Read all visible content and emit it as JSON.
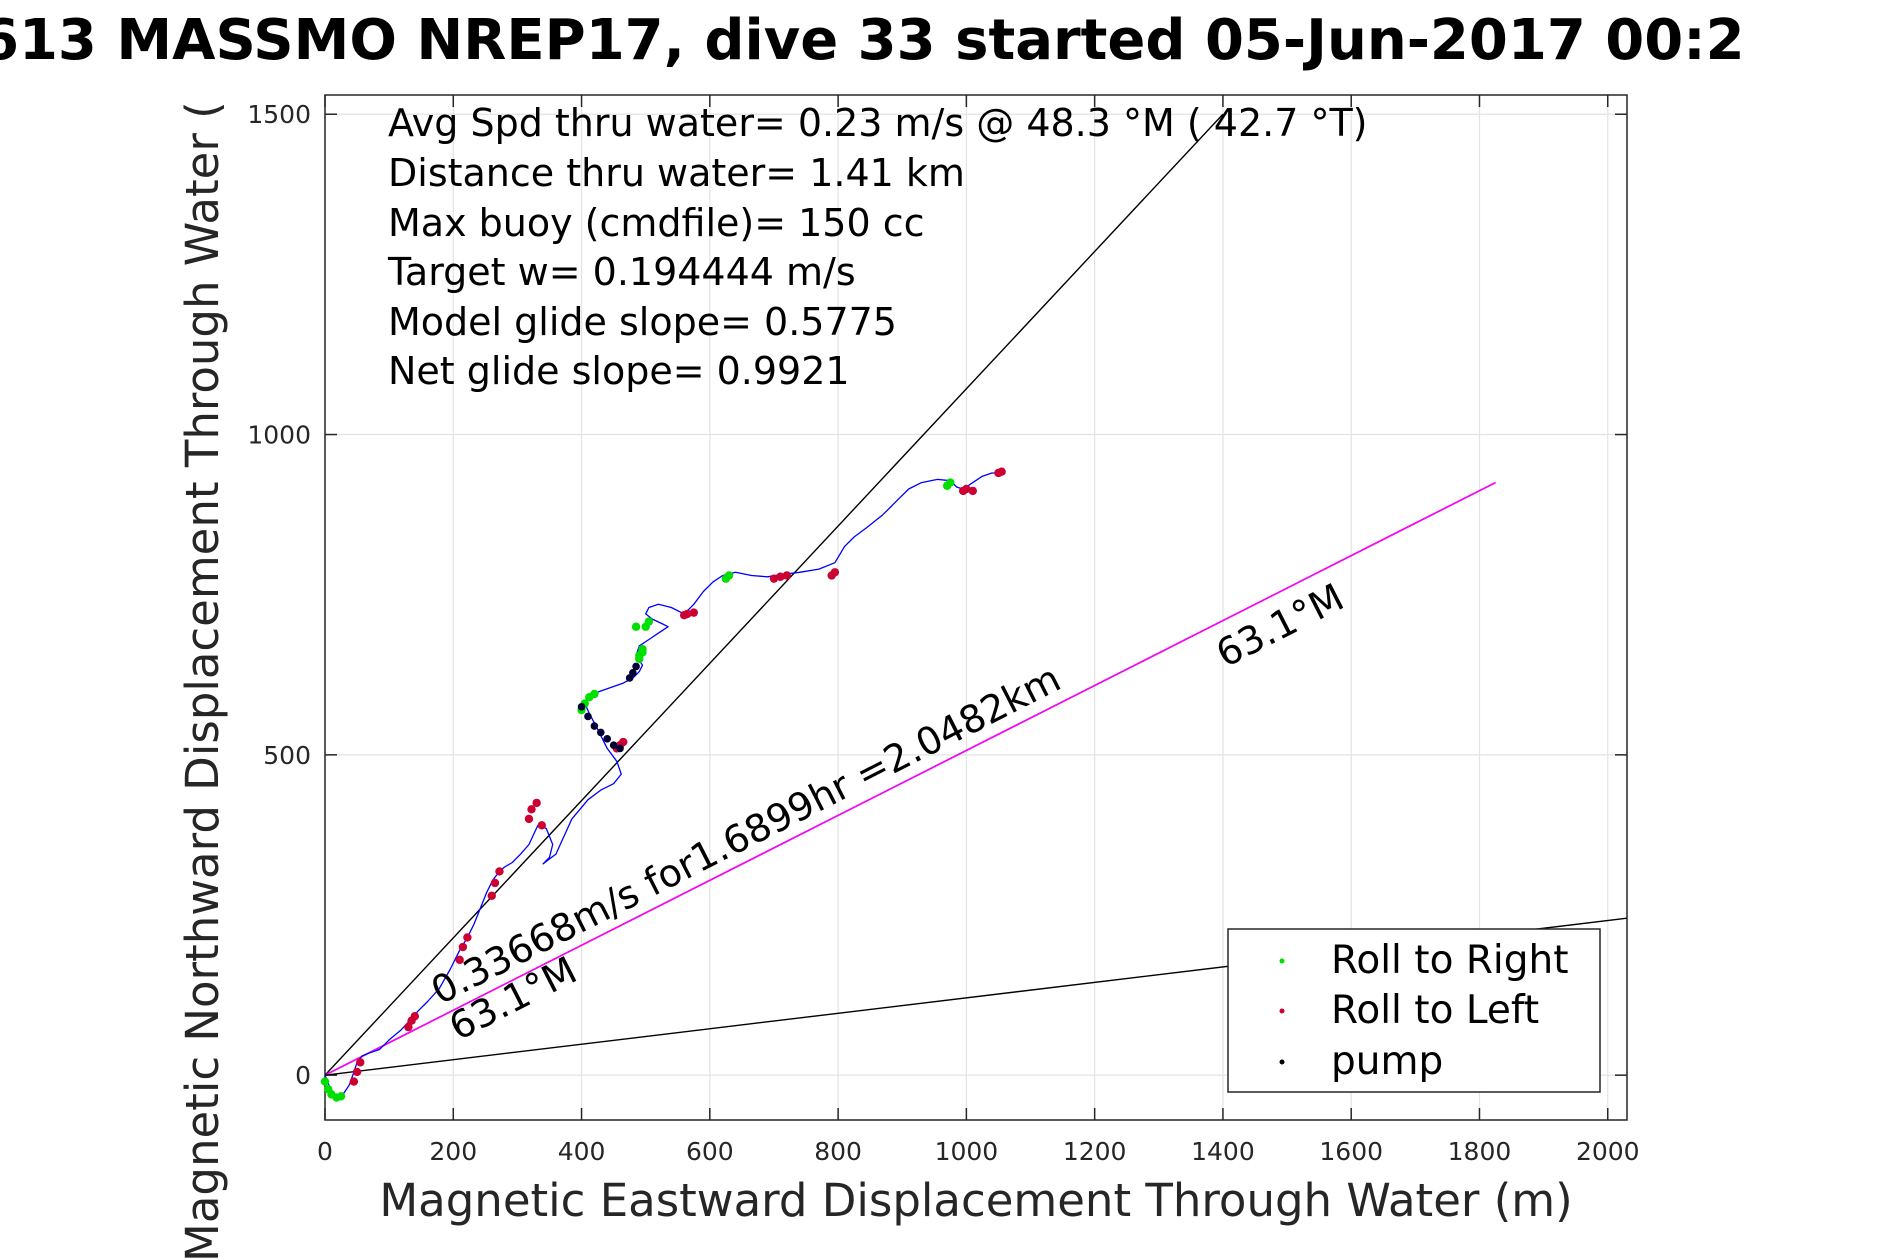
{
  "chart_data": {
    "type": "line",
    "title": "613 MASSMO NREP17, dive 33 started 05-Jun-2017 00:2",
    "xlabel": "Magnetic Eastward Displacement Through Water (m)",
    "ylabel": "Magnetic Northward Displacement Through Water (",
    "xlim": [
      0,
      2030
    ],
    "ylim": [
      -70,
      1530
    ],
    "xticks": [
      0,
      200,
      400,
      600,
      800,
      1000,
      1200,
      1400,
      1600,
      1800,
      2000
    ],
    "yticks": [
      0,
      500,
      1000,
      1500
    ],
    "grid": true,
    "stats": [
      "Avg Spd thru water=  0.23 m/s @  48.3 °M ( 42.7 °T)",
      "Distance thru water=  1.41 km",
      "Max buoy (cmdfile)= 150 cc",
      "Target w= 0.194444 m/s",
      "Model glide slope= 0.5775",
      "Net glide slope= 0.9921"
    ],
    "annotations": {
      "current": "0.33668m/s for1.6899hr =2.0482km",
      "heading_upper": "63.1°M",
      "heading_lower": "63.1°M"
    },
    "series": [
      {
        "name": "track",
        "color": "#0000ff",
        "x": [
          0,
          8,
          18,
          28,
          38,
          45,
          50,
          58,
          70,
          85,
          100,
          118,
          132,
          145,
          160,
          178,
          195,
          210,
          222,
          232,
          242,
          252,
          262,
          272,
          280,
          292,
          305,
          318,
          325,
          332,
          345,
          355,
          350,
          340,
          360,
          385,
          410,
          430,
          450,
          462,
          455,
          440,
          425,
          412,
          405,
          410,
          425,
          445,
          465,
          480,
          490,
          495,
          485,
          490,
          505,
          520,
          535,
          525,
          510,
          500,
          505,
          520,
          540,
          560,
          575,
          590,
          605,
          620,
          640,
          665,
          690,
          715,
          740,
          770,
          795,
          810,
          825,
          845,
          870,
          895,
          910,
          930,
          955,
          975,
          985,
          995,
          1010,
          1025,
          1040,
          1055
        ],
        "y": [
          0,
          -20,
          -35,
          -30,
          -15,
          5,
          20,
          30,
          35,
          40,
          55,
          70,
          85,
          100,
          115,
          135,
          165,
          195,
          215,
          235,
          260,
          285,
          305,
          318,
          325,
          332,
          345,
          360,
          375,
          390,
          385,
          360,
          340,
          330,
          345,
          400,
          430,
          445,
          455,
          470,
          490,
          510,
          540,
          565,
          580,
          592,
          598,
          605,
          612,
          620,
          630,
          640,
          655,
          670,
          680,
          690,
          700,
          705,
          712,
          720,
          730,
          735,
          730,
          720,
          735,
          755,
          770,
          780,
          785,
          780,
          778,
          782,
          785,
          790,
          800,
          825,
          840,
          855,
          875,
          900,
          915,
          925,
          930,
          928,
          918,
          915,
          925,
          935,
          940,
          940
        ]
      }
    ],
    "lines": [
      {
        "name": "avg-heading",
        "color": "#000000",
        "x": [
          0,
          1400
        ],
        "y": [
          0,
          1500
        ]
      },
      {
        "name": "current-vector",
        "color": "#000000",
        "x": [
          0,
          1825
        ],
        "y": [
          0,
          925
        ]
      },
      {
        "name": "model-heading",
        "color": "#ff00ff",
        "x": [
          0,
          1825
        ],
        "y": [
          0,
          925
        ]
      },
      {
        "name": "pump-line",
        "color": "#000000",
        "x": [
          0,
          2030
        ],
        "y": [
          0,
          245
        ]
      }
    ],
    "markers": {
      "roll_right": {
        "color": "#00e000",
        "x": [
          0,
          5,
          10,
          18,
          25,
          400,
          405,
          412,
          420,
          490,
          495,
          500,
          505,
          625,
          630,
          970,
          975,
          490,
          495,
          485
        ],
        "y": [
          -10,
          -22,
          -30,
          -35,
          -33,
          570,
          580,
          590,
          595,
          655,
          665,
          700,
          708,
          775,
          780,
          920,
          925,
          650,
          660,
          700
        ]
      },
      "roll_left": {
        "color": "#cc0033",
        "x": [
          45,
          50,
          55,
          130,
          135,
          140,
          210,
          215,
          222,
          260,
          265,
          272,
          318,
          322,
          330,
          338,
          455,
          460,
          465,
          560,
          565,
          575,
          700,
          710,
          720,
          790,
          795,
          995,
          1000,
          1010,
          1050,
          1055
        ],
        "y": [
          -10,
          5,
          20,
          75,
          85,
          92,
          180,
          200,
          215,
          280,
          300,
          318,
          400,
          415,
          425,
          390,
          510,
          515,
          520,
          718,
          720,
          722,
          775,
          778,
          780,
          780,
          785,
          912,
          915,
          912,
          940,
          942
        ]
      },
      "pump": {
        "color": "#000033",
        "x": [
          400,
          410,
          420,
          430,
          440,
          450,
          460,
          475,
          480,
          485
        ],
        "y": [
          575,
          560,
          545,
          535,
          525,
          515,
          510,
          620,
          628,
          638
        ]
      }
    },
    "legend": {
      "position": "bottom-right",
      "items": [
        {
          "label": "Roll to Right",
          "color": "#00e000"
        },
        {
          "label": "Roll to Left",
          "color": "#cc0033"
        },
        {
          "label": "pump",
          "color": "#000000"
        }
      ]
    }
  }
}
